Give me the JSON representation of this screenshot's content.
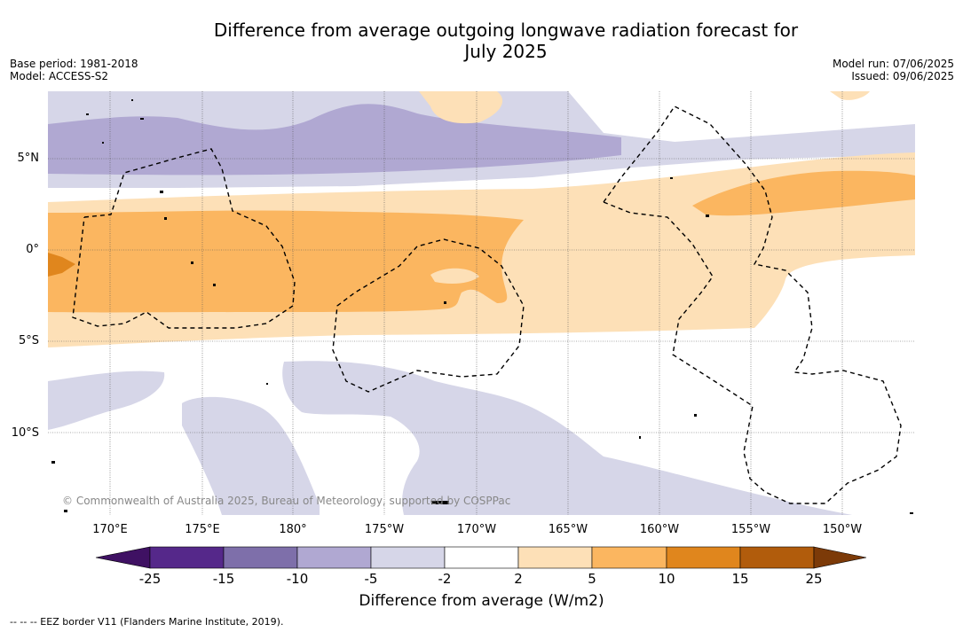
{
  "title_line1": "Difference from average outgoing longwave radiation forecast for",
  "title_line2": "July 2025",
  "base_period": "Base period: 1981-2018",
  "model": "Model: ACCESS-S2",
  "model_run": "Model run: 07/06/2025",
  "issued": "Issued: 09/06/2025",
  "credit": "© Commonwealth of Australia 2025, Bureau of Meteorology, supported by COSPPac",
  "lat_labels": [
    "5°N",
    "0°",
    "5°S",
    "10°S"
  ],
  "lon_labels": [
    "170°E",
    "175°E",
    "180°",
    "175°W",
    "170°W",
    "165°W",
    "160°W",
    "155°W",
    "150°W"
  ],
  "colorbar": {
    "label": "Difference from average (W/m2)",
    "ticks": [
      "-25",
      "-15",
      "-10",
      "-5",
      "-2",
      "2",
      "5",
      "10",
      "15",
      "25"
    ],
    "colors": [
      "#3f1163",
      "#55288a",
      "#7e6faa",
      "#b0a8d2",
      "#d6d6e8",
      "#ffffff",
      "#fde0b7",
      "#fbb660",
      "#e0861d",
      "#b15c0c",
      "#7c3a08"
    ]
  },
  "footnote": "-- -- -- EEZ border V11 (Flanders Marine Institute, 2019)."
}
